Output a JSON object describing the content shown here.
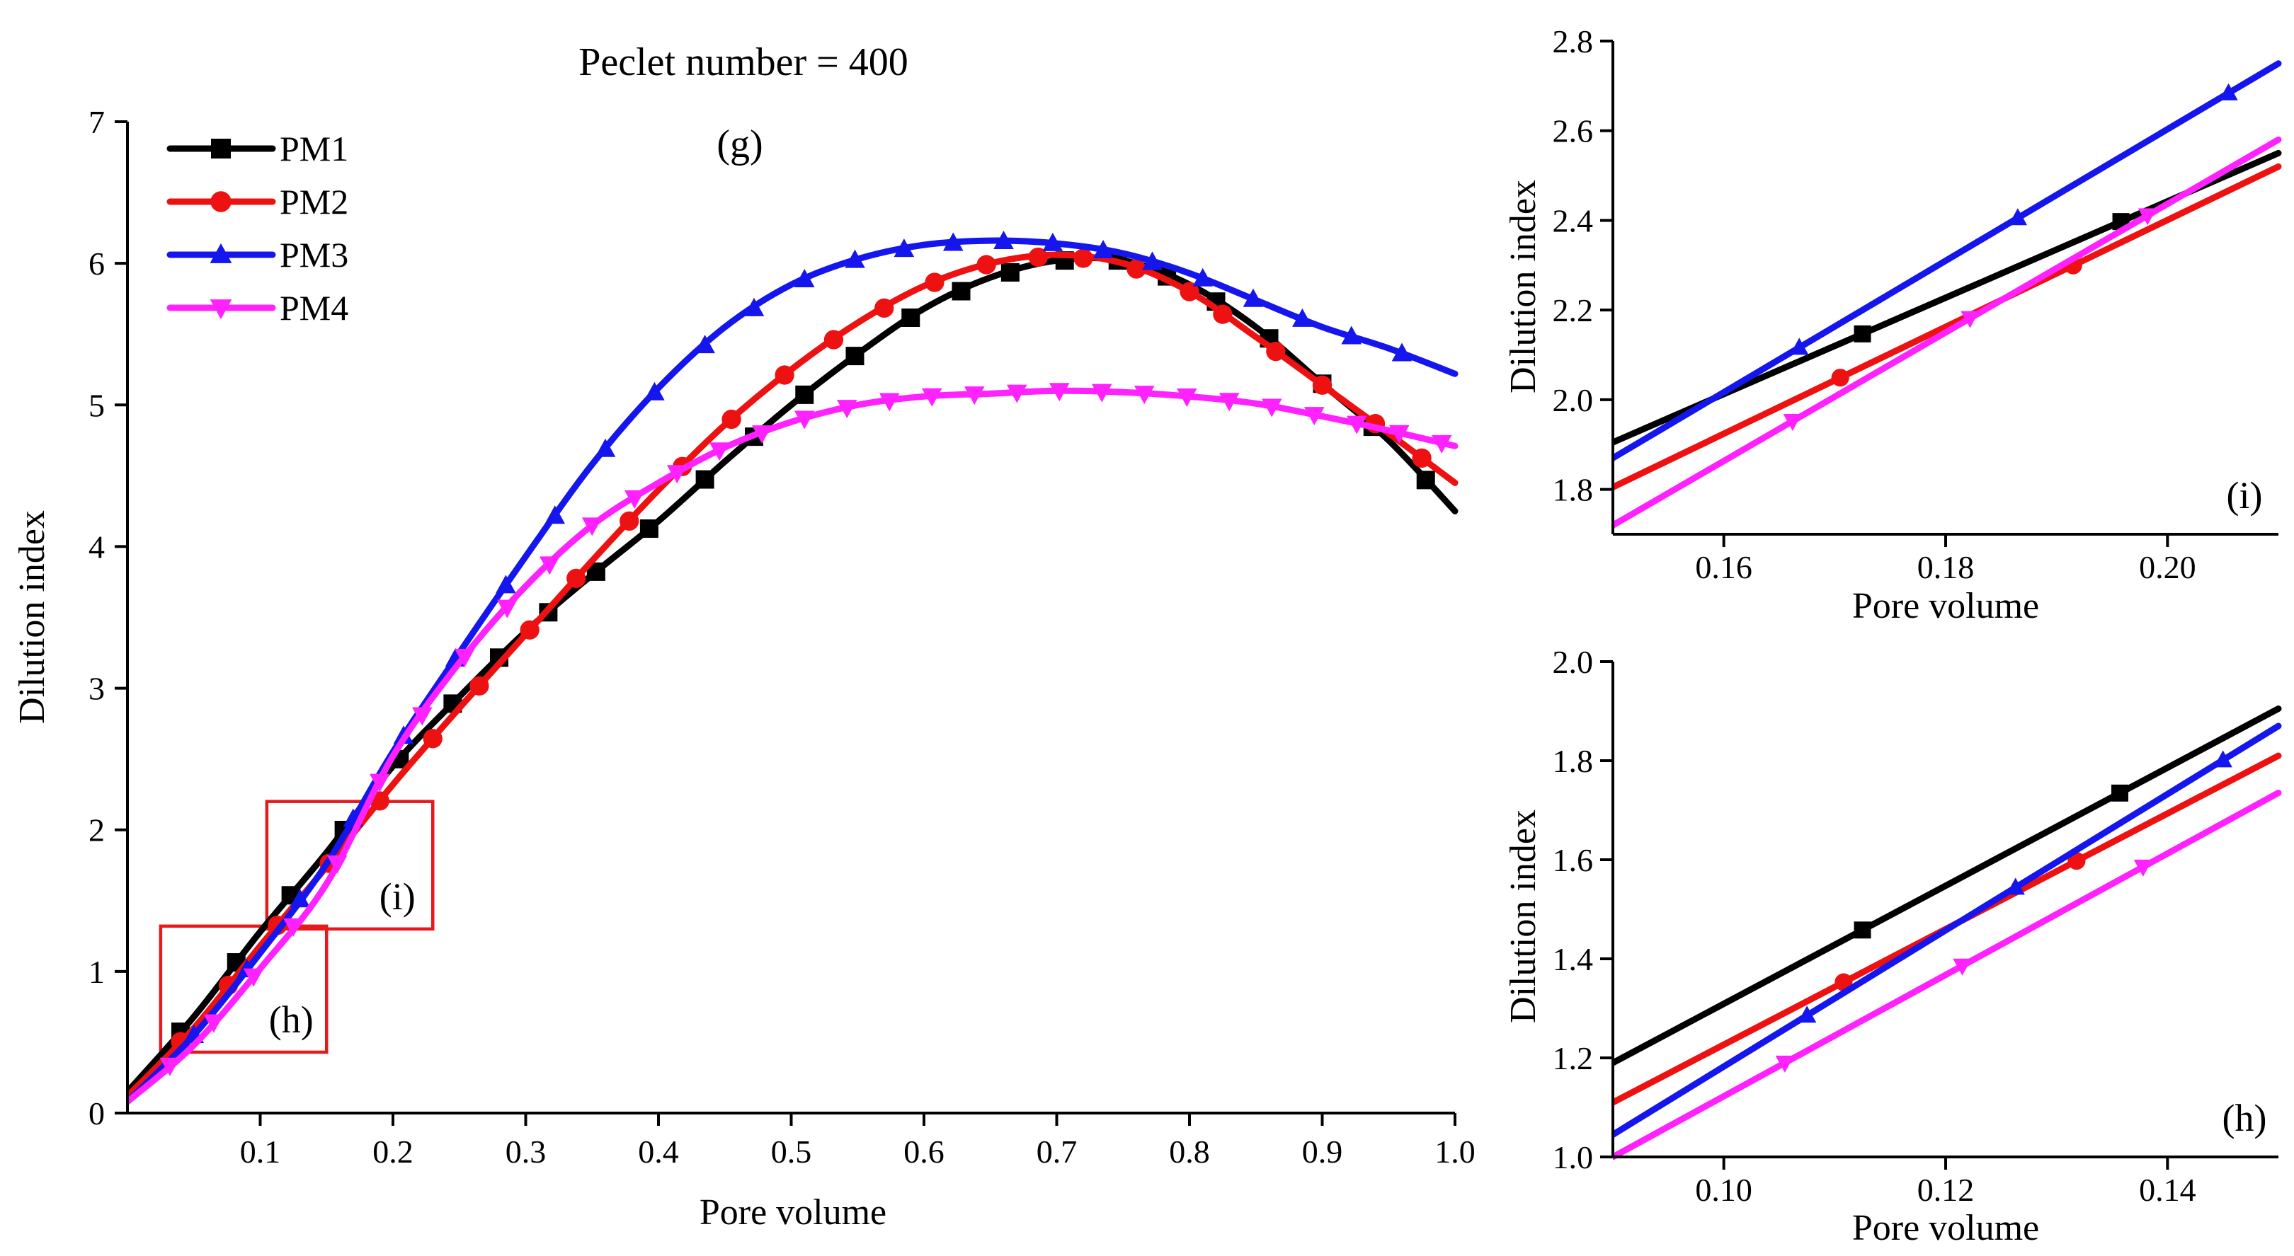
{
  "figure": {
    "series_legend": [
      {
        "name": "PM1",
        "color": "#000000",
        "marker": "square"
      },
      {
        "name": "PM2",
        "color": "#ee1111",
        "marker": "circle"
      },
      {
        "name": "PM3",
        "color": "#1515ee",
        "marker": "triangle-up"
      },
      {
        "name": "PM4",
        "color": "#ff22ff",
        "marker": "triangle-down"
      }
    ],
    "zoom_box_color": "#e8191c"
  },
  "chart_data": [
    {
      "id": "main",
      "type": "line",
      "title": "Peclet number = 400",
      "panel_tag": "(g)",
      "xlabel": "Pore volume",
      "ylabel": "Dilution index",
      "xlim": [
        0.0,
        1.0
      ],
      "ylim": [
        0,
        7
      ],
      "xticks": [
        0.1,
        0.2,
        0.3,
        0.4,
        0.5,
        0.6,
        0.7,
        0.8,
        0.9,
        1.0
      ],
      "xtick_labels": [
        "0.1",
        "0.2",
        "0.3",
        "0.4",
        "0.5",
        "0.6",
        "0.7",
        "0.8",
        "0.9",
        "1.0"
      ],
      "yticks": [
        0,
        1,
        2,
        3,
        4,
        5,
        6,
        7
      ],
      "ytick_labels": [
        "0",
        "1",
        "2",
        "3",
        "4",
        "5",
        "6",
        "7"
      ],
      "legend": "top-left",
      "grid": false,
      "annotations": [
        {
          "label": "(i)",
          "x_range": [
            0.105,
            0.23
          ],
          "y_range": [
            1.3,
            2.2
          ]
        },
        {
          "label": "(h)",
          "x_range": [
            0.025,
            0.15
          ],
          "y_range": [
            0.43,
            1.32
          ]
        }
      ],
      "series": [
        {
          "name": "PM1",
          "x": [
            0.0,
            0.05,
            0.1,
            0.15,
            0.2,
            0.25,
            0.3,
            0.35,
            0.4,
            0.45,
            0.5,
            0.55,
            0.6,
            0.65,
            0.7,
            0.75,
            0.8,
            0.85,
            0.9,
            0.95,
            1.0
          ],
          "y": [
            0.15,
            0.68,
            1.28,
            1.84,
            2.45,
            2.94,
            3.4,
            3.8,
            4.18,
            4.6,
            5.0,
            5.36,
            5.68,
            5.9,
            6.02,
            6.02,
            5.85,
            5.55,
            5.15,
            4.75,
            4.25
          ],
          "markers_x": [
            0.04,
            0.082,
            0.123,
            0.163,
            0.205,
            0.245,
            0.28,
            0.317,
            0.353,
            0.393,
            0.435,
            0.472,
            0.51,
            0.548,
            0.59,
            0.628,
            0.665,
            0.706,
            0.746,
            0.783,
            0.82,
            0.86,
            0.9,
            0.938,
            0.978
          ]
        },
        {
          "name": "PM2",
          "x": [
            0.0,
            0.05,
            0.1,
            0.15,
            0.2,
            0.25,
            0.3,
            0.35,
            0.4,
            0.45,
            0.5,
            0.55,
            0.6,
            0.65,
            0.7,
            0.75,
            0.8,
            0.85,
            0.9,
            0.95,
            1.0
          ],
          "y": [
            0.12,
            0.6,
            1.18,
            1.74,
            2.32,
            2.86,
            3.38,
            3.9,
            4.4,
            4.86,
            5.25,
            5.58,
            5.84,
            6.0,
            6.06,
            6.0,
            5.8,
            5.48,
            5.14,
            4.8,
            4.45
          ],
          "markers_x": [
            0.04,
            0.076,
            0.113,
            0.152,
            0.19,
            0.23,
            0.265,
            0.303,
            0.338,
            0.378,
            0.418,
            0.455,
            0.495,
            0.532,
            0.57,
            0.608,
            0.647,
            0.686,
            0.72,
            0.76,
            0.8,
            0.825,
            0.865,
            0.9,
            0.94,
            0.975
          ]
        },
        {
          "name": "PM3",
          "x": [
            0.0,
            0.05,
            0.1,
            0.15,
            0.2,
            0.25,
            0.3,
            0.35,
            0.4,
            0.45,
            0.5,
            0.55,
            0.6,
            0.65,
            0.7,
            0.75,
            0.8,
            0.85,
            0.9,
            0.95,
            1.0
          ],
          "y": [
            0.08,
            0.55,
            1.13,
            1.76,
            2.55,
            3.25,
            3.93,
            4.58,
            5.12,
            5.55,
            5.85,
            6.03,
            6.13,
            6.16,
            6.14,
            6.07,
            5.93,
            5.74,
            5.55,
            5.4,
            5.22
          ],
          "markers_x": [
            0.05,
            0.09,
            0.13,
            0.17,
            0.208,
            0.247,
            0.285,
            0.322,
            0.36,
            0.397,
            0.435,
            0.472,
            0.51,
            0.548,
            0.585,
            0.622,
            0.66,
            0.697,
            0.735,
            0.772,
            0.81,
            0.848,
            0.885,
            0.922,
            0.96
          ]
        },
        {
          "name": "PM4",
          "x": [
            0.0,
            0.05,
            0.1,
            0.15,
            0.2,
            0.25,
            0.3,
            0.35,
            0.4,
            0.45,
            0.5,
            0.55,
            0.6,
            0.65,
            0.7,
            0.75,
            0.8,
            0.85,
            0.9,
            0.95,
            1.0
          ],
          "y": [
            0.08,
            0.48,
            1.02,
            1.62,
            2.52,
            3.18,
            3.72,
            4.15,
            4.45,
            4.7,
            4.88,
            5.0,
            5.06,
            5.08,
            5.1,
            5.09,
            5.06,
            5.01,
            4.92,
            4.82,
            4.71
          ],
          "markers_x": [
            0.032,
            0.065,
            0.095,
            0.125,
            0.158,
            0.19,
            0.222,
            0.254,
            0.286,
            0.318,
            0.35,
            0.382,
            0.414,
            0.446,
            0.478,
            0.51,
            0.542,
            0.574,
            0.606,
            0.638,
            0.67,
            0.702,
            0.734,
            0.766,
            0.798,
            0.83,
            0.862,
            0.894,
            0.926,
            0.958,
            0.99
          ]
        }
      ]
    },
    {
      "id": "zoom-i",
      "type": "line",
      "panel_tag": "(i)",
      "xlabel": "Pore volume",
      "ylabel": "Dilution index",
      "xlim": [
        0.15,
        0.21
      ],
      "ylim": [
        1.7,
        2.8
      ],
      "xticks": [
        0.16,
        0.18,
        0.2
      ],
      "xtick_labels": [
        "0.16",
        "0.18",
        "0.20"
      ],
      "yticks": [
        1.8,
        2.0,
        2.2,
        2.4,
        2.6,
        2.8
      ],
      "ytick_labels": [
        "1.8",
        "2.0",
        "2.2",
        "2.4",
        "2.6",
        "2.8"
      ],
      "grid": false,
      "series": [
        {
          "name": "PM1",
          "x": [
            0.15,
            0.21
          ],
          "y": [
            1.905,
            2.55
          ],
          "markers_x": [
            0.1725,
            0.1958
          ]
        },
        {
          "name": "PM2",
          "x": [
            0.15,
            0.21
          ],
          "y": [
            1.805,
            2.52
          ],
          "markers_x": [
            0.1705,
            0.1915
          ]
        },
        {
          "name": "PM3",
          "x": [
            0.15,
            0.21
          ],
          "y": [
            1.87,
            2.75
          ],
          "markers_x": [
            0.1668,
            0.1865,
            0.2055
          ]
        },
        {
          "name": "PM4",
          "x": [
            0.15,
            0.21
          ],
          "y": [
            1.72,
            2.58
          ],
          "markers_x": [
            0.1662,
            0.1822,
            0.1982
          ]
        }
      ]
    },
    {
      "id": "zoom-h",
      "type": "line",
      "panel_tag": "(h)",
      "xlabel": "Pore volume",
      "ylabel": "Dilution index",
      "xlim": [
        0.09,
        0.15
      ],
      "ylim": [
        1.0,
        2.0
      ],
      "xticks": [
        0.1,
        0.12,
        0.14
      ],
      "xtick_labels": [
        "0.10",
        "0.12",
        "0.14"
      ],
      "yticks": [
        1.0,
        1.2,
        1.4,
        1.6,
        1.8,
        2.0
      ],
      "ytick_labels": [
        "1.0",
        "1.2",
        "1.4",
        "1.6",
        "1.8",
        "2.0"
      ],
      "grid": false,
      "series": [
        {
          "name": "PM1",
          "x": [
            0.09,
            0.15
          ],
          "y": [
            1.19,
            1.905
          ],
          "markers_x": [
            0.1125,
            0.1357
          ]
        },
        {
          "name": "PM2",
          "x": [
            0.09,
            0.15
          ],
          "y": [
            1.11,
            1.81
          ],
          "markers_x": [
            0.1108,
            0.1318
          ]
        },
        {
          "name": "PM3",
          "x": [
            0.09,
            0.15
          ],
          "y": [
            1.045,
            1.87
          ],
          "markers_x": [
            0.1075,
            0.1263,
            0.145
          ]
        },
        {
          "name": "PM4",
          "x": [
            0.09,
            0.15
          ],
          "y": [
            1.0,
            1.735
          ],
          "markers_x": [
            0.1055,
            0.1215,
            0.1378
          ]
        }
      ]
    }
  ]
}
